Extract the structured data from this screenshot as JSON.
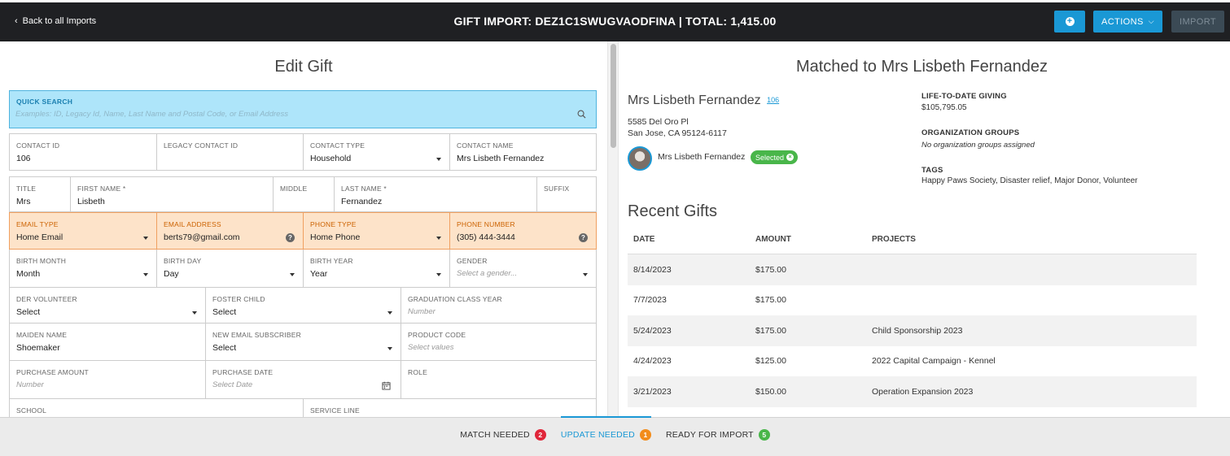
{
  "header": {
    "back_label": "Back to all Imports",
    "title": "GIFT IMPORT: DEZ1C1SWUGVAODFINA | TOTAL: 1,415.00",
    "actions_label": "ACTIONS",
    "import_label": "IMPORT"
  },
  "edit": {
    "title": "Edit Gift",
    "quick_search": {
      "label": "QUICK SEARCH",
      "placeholder": "Examples: ID, Legacy Id, Name, Last Name and Postal Code, or Email Address"
    },
    "rows": [
      [
        {
          "label": "CONTACT ID",
          "value": "106"
        },
        {
          "label": "LEGACY CONTACT ID",
          "value": ""
        },
        {
          "label": "CONTACT TYPE",
          "value": "Household"
        },
        {
          "label": "CONTACT NAME",
          "value": "Mrs Lisbeth Fernandez"
        }
      ],
      [
        {
          "label": "TITLE",
          "value": "Mrs"
        },
        {
          "label": "FIRST NAME *",
          "value": "Lisbeth"
        },
        {
          "label": "MIDDLE",
          "value": ""
        },
        {
          "label": "LAST NAME *",
          "value": "Fernandez"
        },
        {
          "label": "SUFFIX",
          "value": ""
        }
      ],
      [
        {
          "label": "EMAIL TYPE",
          "value": "Home Email"
        },
        {
          "label": "EMAIL ADDRESS",
          "value": "berts79@gmail.com"
        },
        {
          "label": "PHONE TYPE",
          "value": "Home Phone"
        },
        {
          "label": "PHONE NUMBER",
          "value": "(305) 444-3444"
        }
      ],
      [
        {
          "label": "BIRTH MONTH",
          "value": "Month"
        },
        {
          "label": "BIRTH DAY",
          "value": "Day"
        },
        {
          "label": "BIRTH YEAR",
          "value": "Year"
        },
        {
          "label": "GENDER",
          "placeholder": "Select a gender..."
        }
      ],
      [
        {
          "label": "DER VOLUNTEER",
          "value": "Select"
        },
        {
          "label": "FOSTER CHILD",
          "value": "Select"
        },
        {
          "label": "GRADUATION CLASS YEAR",
          "placeholder": "Number"
        }
      ],
      [
        {
          "label": "MAIDEN NAME",
          "value": "Shoemaker"
        },
        {
          "label": "NEW EMAIL SUBSCRIBER",
          "value": "Select"
        },
        {
          "label": "PRODUCT CODE",
          "placeholder": "Select values"
        }
      ],
      [
        {
          "label": "PURCHASE AMOUNT",
          "placeholder": "Number"
        },
        {
          "label": "PURCHASE DATE",
          "placeholder": "Select Date"
        },
        {
          "label": "ROLE",
          "value": ""
        }
      ],
      [
        {
          "label": "SCHOOL",
          "value": ""
        },
        {
          "label": "SERVICE LINE",
          "value": ""
        }
      ]
    ]
  },
  "match": {
    "title": "Matched to Mrs Lisbeth Fernandez",
    "contact_name": "Mrs Lisbeth Fernandez",
    "contact_id_link": "106",
    "address_line1": "5585 Del Oro Pl",
    "address_line2": "San Jose, CA 95124-6117",
    "avatar_name": "Mrs Lisbeth Fernandez",
    "selected_label": "Selected",
    "ltd_label": "LIFE-TO-DATE GIVING",
    "ltd_value": "$105,795.05",
    "org_label": "ORGANIZATION GROUPS",
    "org_value": "No organization groups assigned",
    "tags_label": "TAGS",
    "tags_value": "Happy Paws Society, Disaster relief, Major Donor, Volunteer",
    "recent_title": "Recent Gifts",
    "columns": [
      "DATE",
      "AMOUNT",
      "PROJECTS"
    ],
    "gifts": [
      {
        "date": "8/14/2023",
        "amount": "$175.00",
        "project": ""
      },
      {
        "date": "7/7/2023",
        "amount": "$175.00",
        "project": ""
      },
      {
        "date": "5/24/2023",
        "amount": "$175.00",
        "project": "Child Sponsorship 2023"
      },
      {
        "date": "4/24/2023",
        "amount": "$125.00",
        "project": "2022 Capital Campaign - Kennel"
      },
      {
        "date": "3/21/2023",
        "amount": "$150.00",
        "project": "Operation Expansion 2023"
      }
    ]
  },
  "footer": {
    "tabs": [
      {
        "label": "MATCH NEEDED",
        "count": "2",
        "color": "#e0263a"
      },
      {
        "label": "UPDATE NEEDED",
        "count": "1",
        "color": "#f28c1b"
      },
      {
        "label": "READY FOR IMPORT",
        "count": "5",
        "color": "#49b64a"
      }
    ]
  }
}
